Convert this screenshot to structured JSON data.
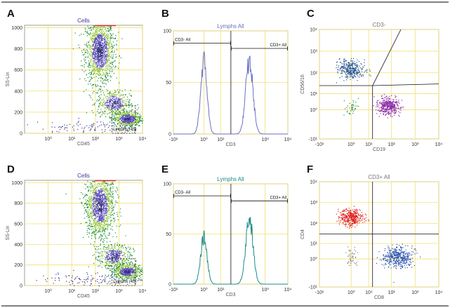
{
  "chart_data": [
    {
      "id": "A",
      "type": "scatter",
      "panel_label": "A",
      "title": "Cells",
      "xlabel": "CD45",
      "ylabel": "SS-Lin",
      "x_scale": "log",
      "xlim": [
        0.1,
        10000
      ],
      "x_ticks": [
        {
          "v": 1,
          "t": "10⁰"
        },
        {
          "v": 10,
          "t": "10¹"
        },
        {
          "v": 100,
          "t": "10²"
        },
        {
          "v": 1000,
          "t": "10³"
        },
        {
          "v": 10000,
          "t": "10⁴"
        }
      ],
      "y_scale": "linear",
      "ylim": [
        0,
        1023
      ],
      "y_ticks": [
        {
          "v": 0,
          "t": "0"
        },
        {
          "v": 200,
          "t": "200"
        },
        {
          "v": 400,
          "t": "400"
        },
        {
          "v": 600,
          "t": "600"
        },
        {
          "v": 800,
          "t": "800"
        },
        {
          "v": 1000,
          "t": "1000"
        }
      ],
      "clusters": [
        {
          "name": "granulocytes",
          "x": 150,
          "y": 780,
          "sx": 0.12,
          "sy": 150,
          "n": 1400,
          "density": true
        },
        {
          "name": "monocytes",
          "x": 600,
          "y": 290,
          "sx": 0.14,
          "sy": 60,
          "n": 450,
          "density": true
        },
        {
          "name": "lymphocytes",
          "x": 2200,
          "y": 140,
          "sx": 0.12,
          "sy": 38,
          "n": 650,
          "density": true
        },
        {
          "name": "debris",
          "x": 60,
          "y": 60,
          "sx": 0.45,
          "sy": 35,
          "n": 120,
          "density": false
        }
      ],
      "gates": [
        {
          "label": "Lymphs (45)",
          "x1": 500,
          "x2": 5000,
          "y1": 0,
          "y2": 260,
          "style": "dashed"
        }
      ]
    },
    {
      "id": "B",
      "type": "histogram",
      "panel_label": "B",
      "title": "Lymphs All",
      "xlabel": "CD3",
      "ylabel": "",
      "line_color": "#6a6fc4",
      "x_scale": "biex",
      "xlim": [
        -10,
        10000
      ],
      "x_ticks": [
        {
          "v": -10,
          "t": "-10¹"
        },
        {
          "v": 1,
          "t": "10⁰"
        },
        {
          "v": 10,
          "t": "10¹"
        },
        {
          "v": 1000,
          "t": "10³"
        },
        {
          "v": 10000,
          "t": "10⁴"
        }
      ],
      "ylim": [
        0,
        100
      ],
      "y_ticks": [
        {
          "v": 0,
          "t": "0"
        },
        {
          "v": 50,
          "t": "50"
        },
        {
          "v": 100,
          "t": "100"
        }
      ],
      "peaks": [
        {
          "x": 1,
          "height": 73,
          "width": 0.14
        },
        {
          "x": 200,
          "height": 72,
          "width": 0.16
        }
      ],
      "gates": [
        {
          "label": "CD3- All",
          "x1": -10,
          "x2": 30,
          "y": 88
        },
        {
          "label": "CD3+ All",
          "x1": 30,
          "x2": 10000,
          "y": 83
        }
      ]
    },
    {
      "id": "C",
      "type": "scatter",
      "panel_label": "C",
      "title": "CD3-",
      "xlabel": "CD19",
      "ylabel": "CD56/16",
      "x_scale": "biex",
      "xlim": [
        -10,
        10000
      ],
      "x_ticks": [
        {
          "v": -10,
          "t": "-10¹"
        },
        {
          "v": 1,
          "t": "10⁰"
        },
        {
          "v": 10,
          "t": "10¹"
        },
        {
          "v": 100,
          "t": "10²"
        },
        {
          "v": 1000,
          "t": "10³"
        },
        {
          "v": 10000,
          "t": "10⁴"
        }
      ],
      "y_scale": "biex",
      "ylim": [
        -10,
        10000
      ],
      "y_ticks": [
        {
          "v": -10,
          "t": "-10¹"
        },
        {
          "v": 1,
          "t": "10⁰"
        },
        {
          "v": 10,
          "t": "10¹"
        },
        {
          "v": 100,
          "t": "10²"
        },
        {
          "v": 1000,
          "t": "10³"
        },
        {
          "v": 10000,
          "t": "10⁴"
        }
      ],
      "clusters": [
        {
          "name": "NK cells",
          "x": 1,
          "y": 150,
          "sx": 0.28,
          "sy": 0.22,
          "n": 320,
          "color": "#22508f"
        },
        {
          "name": "B cells",
          "x": 70,
          "y": 2,
          "sx": 0.22,
          "sy": 0.18,
          "n": 420,
          "color": "#8c2aa8"
        },
        {
          "name": "double negative",
          "x": 1,
          "y": 1.5,
          "sx": 0.15,
          "sy": 0.2,
          "n": 40,
          "color": "#2a8c3a"
        }
      ],
      "quadrant": {
        "cx": 15,
        "cy": 25,
        "x_top": 250,
        "y_right": 30
      }
    },
    {
      "id": "D",
      "type": "scatter",
      "panel_label": "D",
      "title": "Cells",
      "xlabel": "CD45",
      "ylabel": "SS-Lin",
      "x_scale": "log",
      "xlim": [
        0.1,
        10000
      ],
      "x_ticks": [
        {
          "v": 1,
          "t": "10⁰"
        },
        {
          "v": 10,
          "t": "10¹"
        },
        {
          "v": 100,
          "t": "10²"
        },
        {
          "v": 1000,
          "t": "10³"
        },
        {
          "v": 10000,
          "t": "10⁴"
        }
      ],
      "y_scale": "linear",
      "ylim": [
        0,
        1023
      ],
      "y_ticks": [
        {
          "v": 0,
          "t": "0"
        },
        {
          "v": 200,
          "t": "200"
        },
        {
          "v": 400,
          "t": "400"
        },
        {
          "v": 600,
          "t": "600"
        },
        {
          "v": 800,
          "t": "800"
        },
        {
          "v": 1000,
          "t": "1000"
        }
      ],
      "clusters": [
        {
          "name": "granulocytes",
          "x": 150,
          "y": 780,
          "sx": 0.12,
          "sy": 150,
          "n": 1400,
          "density": true
        },
        {
          "name": "monocytes",
          "x": 600,
          "y": 290,
          "sx": 0.14,
          "sy": 60,
          "n": 450,
          "density": true
        },
        {
          "name": "lymphocytes",
          "x": 2200,
          "y": 140,
          "sx": 0.12,
          "sy": 38,
          "n": 650,
          "density": true
        },
        {
          "name": "debris",
          "x": 60,
          "y": 60,
          "sx": 0.45,
          "sy": 35,
          "n": 120,
          "density": false
        }
      ],
      "gates": [
        {
          "label": "Lymphs (45)",
          "x1": 500,
          "x2": 5000,
          "y1": 0,
          "y2": 260,
          "style": "dashed"
        }
      ]
    },
    {
      "id": "E",
      "type": "histogram",
      "panel_label": "E",
      "title": "Lymphs All",
      "xlabel": "CD3",
      "ylabel": "",
      "line_color": "#1f8a8a",
      "x_scale": "biex",
      "xlim": [
        -10,
        10000
      ],
      "x_ticks": [
        {
          "v": -10,
          "t": "-10¹"
        },
        {
          "v": 1,
          "t": "10⁰"
        },
        {
          "v": 10,
          "t": "10¹"
        },
        {
          "v": 1000,
          "t": "10³"
        },
        {
          "v": 10000,
          "t": "10⁴"
        }
      ],
      "ylim": [
        0,
        100
      ],
      "y_ticks": [
        {
          "v": 0,
          "t": "0"
        },
        {
          "v": 50,
          "t": "50"
        },
        {
          "v": 100,
          "t": "100"
        }
      ],
      "peaks": [
        {
          "x": 1,
          "height": 48,
          "width": 0.14
        },
        {
          "x": 200,
          "height": 68,
          "width": 0.16
        }
      ],
      "gates": [
        {
          "label": "CD3- All",
          "x1": -10,
          "x2": 30,
          "y": 88
        },
        {
          "label": "CD3+ All",
          "x1": 30,
          "x2": 10000,
          "y": 83
        }
      ]
    },
    {
      "id": "F",
      "type": "scatter",
      "panel_label": "F",
      "title": "CD3+ All",
      "xlabel": "CD8",
      "ylabel": "CD4",
      "x_scale": "biex",
      "xlim": [
        -10,
        10000
      ],
      "x_ticks": [
        {
          "v": -10,
          "t": "-10¹"
        },
        {
          "v": 1,
          "t": "10⁰"
        },
        {
          "v": 10,
          "t": "10¹"
        },
        {
          "v": 100,
          "t": "10²"
        },
        {
          "v": 1000,
          "t": "10³"
        },
        {
          "v": 10000,
          "t": "10⁴"
        }
      ],
      "y_scale": "biex",
      "ylim": [
        -10,
        10000
      ],
      "y_ticks": [
        {
          "v": -10,
          "t": "-10¹"
        },
        {
          "v": 1,
          "t": "10⁰"
        },
        {
          "v": 10,
          "t": "10¹"
        },
        {
          "v": 100,
          "t": "10²"
        },
        {
          "v": 1000,
          "t": "10³"
        },
        {
          "v": 10000,
          "t": "10⁴"
        }
      ],
      "clusters": [
        {
          "name": "CD4+",
          "x": 1,
          "y": 200,
          "sx": 0.25,
          "sy": 0.2,
          "n": 380,
          "color": "#e02020"
        },
        {
          "name": "CD8+",
          "x": 180,
          "y": 1.5,
          "sx": 0.3,
          "sy": 0.25,
          "n": 420,
          "color": "#2a50b0"
        },
        {
          "name": "double negative",
          "x": 1,
          "y": 1.5,
          "sx": 0.12,
          "sy": 0.2,
          "n": 50,
          "color": "#888888"
        }
      ],
      "quadrant": {
        "cx": 15,
        "cy": 30,
        "x_top": 15,
        "y_right": 30
      }
    }
  ]
}
